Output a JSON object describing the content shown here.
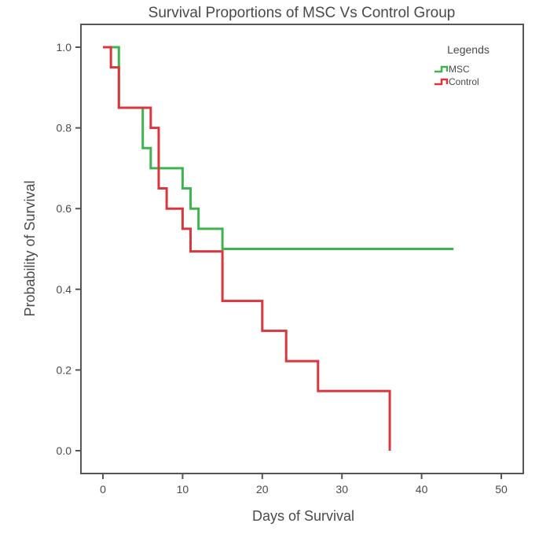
{
  "chart_data": {
    "type": "line",
    "subtype": "kaplan-meier-step",
    "title": "Survival Proportions of MSC Vs Control Group",
    "xlabel": "Days of Survival",
    "ylabel": "Probability of Survival",
    "xlim": [
      0,
      50
    ],
    "ylim": [
      0,
      1
    ],
    "xticks": [
      0,
      10,
      20,
      30,
      40,
      50
    ],
    "xtick_labels": [
      "0",
      "10",
      "20",
      "30",
      "40",
      "50"
    ],
    "yticks": [
      0,
      0.2,
      0.4,
      0.6,
      0.8,
      1.0
    ],
    "ytick_labels": [
      "0.0",
      "0.2",
      "0.4",
      "0.6",
      "0.8",
      "1.0"
    ],
    "grid": false,
    "legend": {
      "title": "Legends",
      "placement": "top-right"
    },
    "series": [
      {
        "name": "MSC",
        "color": "#3fb34f",
        "x": [
          0,
          2,
          5,
          6,
          10,
          11,
          12,
          15,
          44
        ],
        "y": [
          1.0,
          0.85,
          0.75,
          0.7,
          0.65,
          0.6,
          0.55,
          0.5,
          0.5
        ]
      },
      {
        "name": "Control",
        "color": "#d9363e",
        "x": [
          0,
          1,
          2,
          6,
          7,
          8,
          10,
          11,
          15,
          20,
          23,
          27,
          36,
          36
        ],
        "y": [
          1.0,
          0.95,
          0.85,
          0.8,
          0.65,
          0.6,
          0.55,
          0.494,
          0.371,
          0.297,
          0.222,
          0.148,
          0.148,
          0.0
        ]
      }
    ]
  }
}
